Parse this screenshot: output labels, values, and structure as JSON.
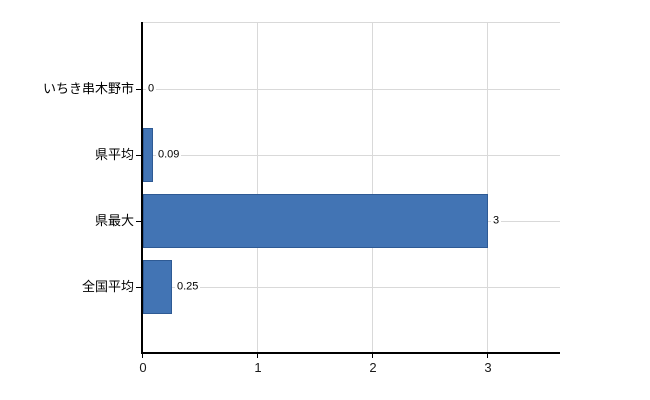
{
  "chart_data": {
    "type": "bar",
    "orientation": "horizontal",
    "title": "",
    "categories": [
      "いちき串木野市",
      "県平均",
      "県最大",
      "全国平均"
    ],
    "values": [
      0,
      0.09,
      3,
      0.25
    ],
    "value_labels": [
      "0",
      "0.09",
      "3",
      "0.25"
    ],
    "x_ticks": [
      "0",
      "1",
      "2",
      "3"
    ],
    "x_tick_values": [
      0,
      1,
      2,
      3
    ],
    "xlim": [
      0,
      3.63
    ],
    "grid": true,
    "legend": false,
    "colors": {
      "bar_fill": "#4274b4",
      "bar_border": "#2e5a94",
      "axis": "#000000",
      "gridline": "#d9d9d9",
      "text": "#000000",
      "background": "#ffffff"
    }
  }
}
